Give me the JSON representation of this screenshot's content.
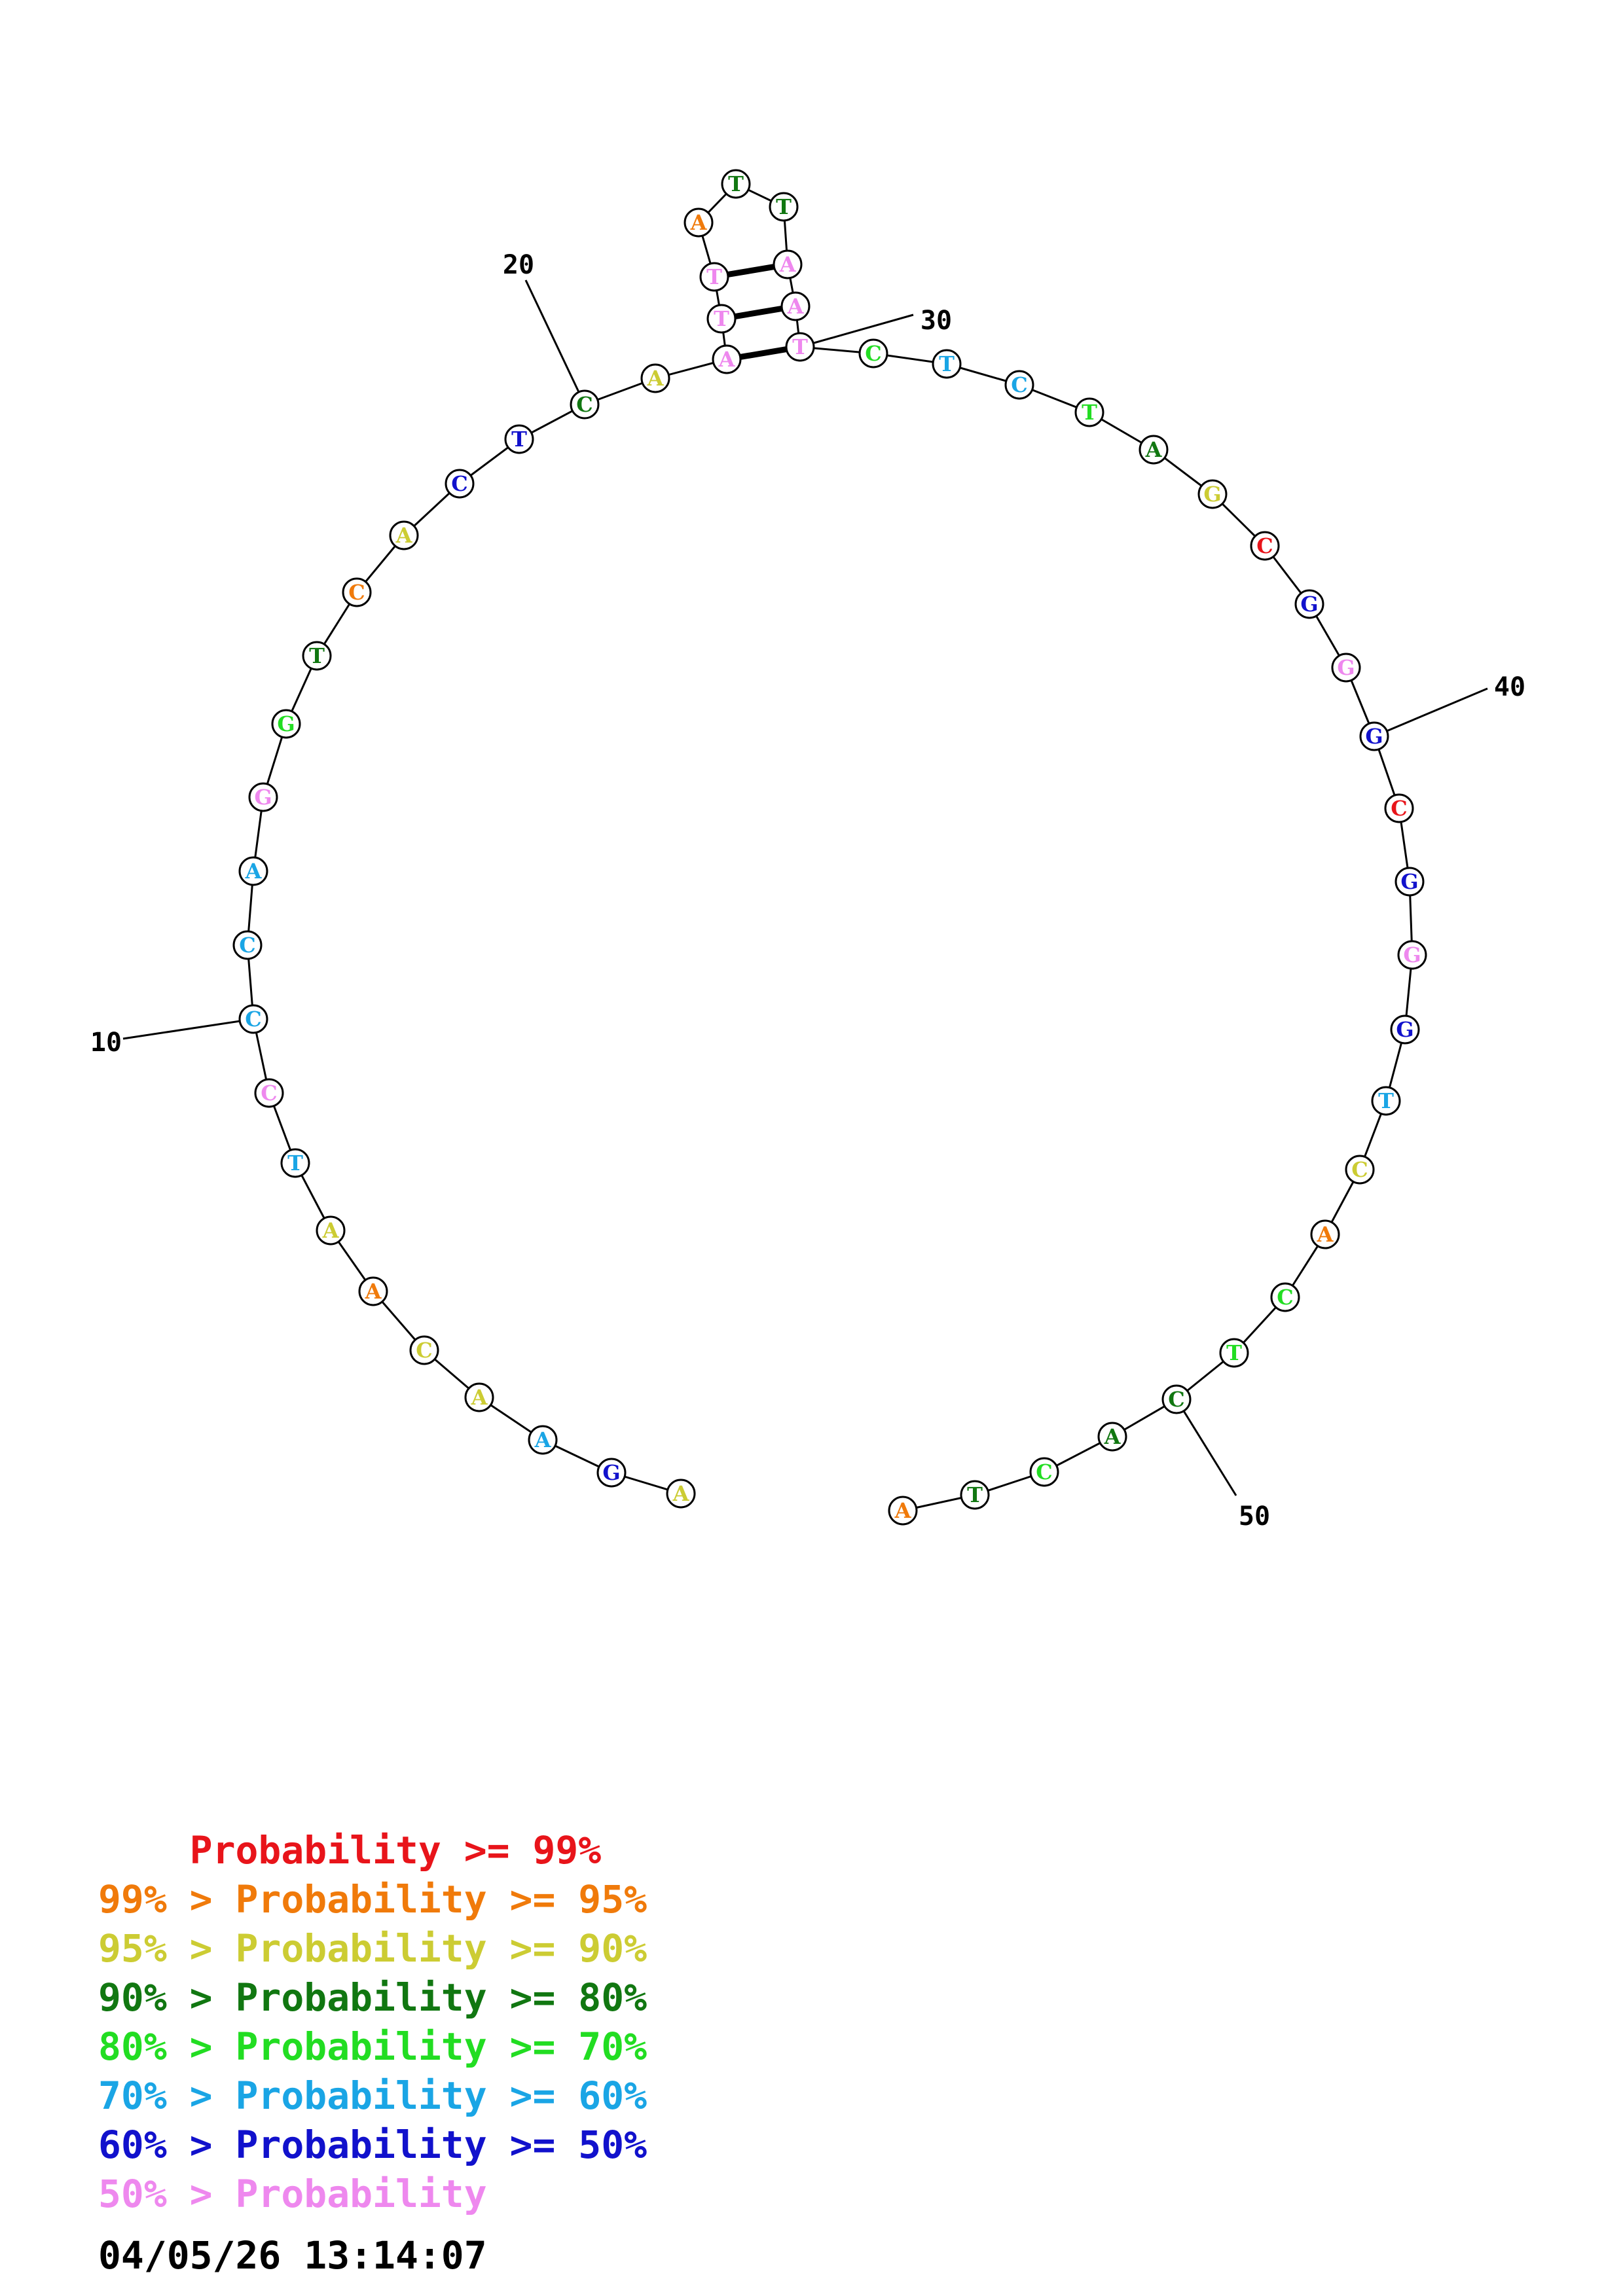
{
  "colors": {
    "p99": "#e8141a",
    "p95": "#f07a0a",
    "p90": "#cccc33",
    "p80": "#117711",
    "p70": "#22dd22",
    "p60": "#1aa5e5",
    "p50": "#1111cc",
    "plt50": "#ee88ee"
  },
  "sequence": [
    {
      "base": "A",
      "p": "p90"
    },
    {
      "base": "G",
      "p": "p50"
    },
    {
      "base": "A",
      "p": "p60"
    },
    {
      "base": "A",
      "p": "p90"
    },
    {
      "base": "C",
      "p": "p90"
    },
    {
      "base": "A",
      "p": "p95"
    },
    {
      "base": "A",
      "p": "p90"
    },
    {
      "base": "T",
      "p": "p60"
    },
    {
      "base": "C",
      "p": "plt50"
    },
    {
      "base": "C",
      "p": "p60"
    },
    {
      "base": "C",
      "p": "p60"
    },
    {
      "base": "A",
      "p": "p60"
    },
    {
      "base": "G",
      "p": "plt50"
    },
    {
      "base": "G",
      "p": "p70"
    },
    {
      "base": "T",
      "p": "p80"
    },
    {
      "base": "C",
      "p": "p95"
    },
    {
      "base": "A",
      "p": "p90"
    },
    {
      "base": "C",
      "p": "p50"
    },
    {
      "base": "T",
      "p": "p50"
    },
    {
      "base": "C",
      "p": "p80"
    },
    {
      "base": "A",
      "p": "p90"
    },
    {
      "base": "A",
      "p": "plt50"
    },
    {
      "base": "T",
      "p": "plt50"
    },
    {
      "base": "T",
      "p": "plt50"
    },
    {
      "base": "A",
      "p": "p95"
    },
    {
      "base": "T",
      "p": "p80"
    },
    {
      "base": "T",
      "p": "p80"
    },
    {
      "base": "A",
      "p": "plt50"
    },
    {
      "base": "A",
      "p": "plt50"
    },
    {
      "base": "T",
      "p": "plt50"
    },
    {
      "base": "C",
      "p": "p70"
    },
    {
      "base": "T",
      "p": "p60"
    },
    {
      "base": "C",
      "p": "p60"
    },
    {
      "base": "T",
      "p": "p70"
    },
    {
      "base": "A",
      "p": "p80"
    },
    {
      "base": "G",
      "p": "p90"
    },
    {
      "base": "C",
      "p": "p99"
    },
    {
      "base": "G",
      "p": "p50"
    },
    {
      "base": "G",
      "p": "plt50"
    },
    {
      "base": "G",
      "p": "p50"
    },
    {
      "base": "C",
      "p": "p99"
    },
    {
      "base": "G",
      "p": "p50"
    },
    {
      "base": "G",
      "p": "plt50"
    },
    {
      "base": "G",
      "p": "p50"
    },
    {
      "base": "T",
      "p": "p60"
    },
    {
      "base": "C",
      "p": "p90"
    },
    {
      "base": "A",
      "p": "p95"
    },
    {
      "base": "C",
      "p": "p70"
    },
    {
      "base": "T",
      "p": "p70"
    },
    {
      "base": "C",
      "p": "p80"
    },
    {
      "base": "A",
      "p": "p80"
    },
    {
      "base": "C",
      "p": "p70"
    },
    {
      "base": "T",
      "p": "p80"
    },
    {
      "base": "A",
      "p": "p95"
    }
  ],
  "pairs": [
    [
      22,
      30
    ],
    [
      23,
      29
    ],
    [
      24,
      28
    ]
  ],
  "position_labels": [
    {
      "index": 10,
      "text": "10"
    },
    {
      "index": 20,
      "text": "20"
    },
    {
      "index": 30,
      "text": "30"
    },
    {
      "index": 40,
      "text": "40"
    },
    {
      "index": 50,
      "text": "50"
    }
  ],
  "legend": [
    {
      "prefix": "    ",
      "text": "    Probability >= 99%",
      "color": "p99"
    },
    {
      "prefix": "",
      "text": "99% > Probability >= 95%",
      "color": "p95"
    },
    {
      "prefix": "",
      "text": "95% > Probability >= 90%",
      "color": "p90"
    },
    {
      "prefix": "",
      "text": "90% > Probability >= 80%",
      "color": "p80"
    },
    {
      "prefix": "",
      "text": "80% > Probability >= 70%",
      "color": "p70"
    },
    {
      "prefix": "",
      "text": "70% > Probability >= 60%",
      "color": "p60"
    },
    {
      "prefix": "",
      "text": "60% > Probability >= 50%",
      "color": "p50"
    },
    {
      "prefix": "",
      "text": "50% > Probability",
      "color": "plt50"
    }
  ],
  "timestamp": "04/05/26 13:14:07"
}
